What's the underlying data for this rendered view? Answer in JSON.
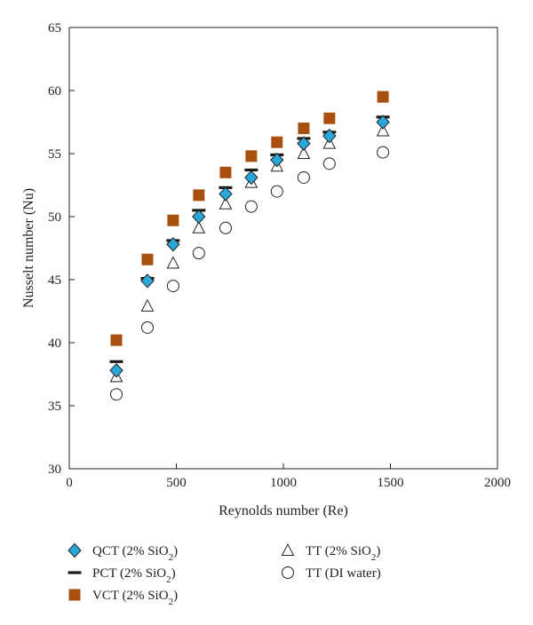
{
  "chart_data": {
    "type": "scatter",
    "xlabel": "Reynolds number (Re)",
    "ylabel": "Nusselt number (Nu)",
    "xlim": [
      0,
      2000
    ],
    "ylim": [
      30,
      65
    ],
    "x_ticks": [
      0,
      500,
      1000,
      1500,
      2000
    ],
    "y_ticks": [
      30,
      35,
      40,
      45,
      50,
      55,
      60,
      65
    ],
    "grid": false,
    "legend_position": "bottom",
    "x": [
      220,
      365,
      485,
      605,
      730,
      850,
      970,
      1095,
      1215,
      1465
    ],
    "series": [
      {
        "name": "QCT (2% SiO2)",
        "legend": {
          "prefix": "QCT (2% SiO",
          "sub": "2",
          "suffix": ")"
        },
        "marker": "diamond",
        "color": "#2aa7d9",
        "values": [
          37.8,
          44.9,
          47.8,
          50.0,
          51.8,
          53.1,
          54.5,
          55.8,
          56.4,
          57.5
        ]
      },
      {
        "name": "PCT (2% SiO2)",
        "legend": {
          "prefix": "PCT (2% SiO",
          "sub": "2",
          "suffix": ")"
        },
        "marker": "dash",
        "color": "#1a1a1a",
        "values": [
          38.5,
          45.1,
          48.1,
          50.5,
          52.3,
          53.7,
          54.9,
          56.2,
          56.7,
          57.9
        ]
      },
      {
        "name": "VCT (2% SiO2)",
        "legend": {
          "prefix": "VCT (2% SiO",
          "sub": "2",
          "suffix": ")"
        },
        "marker": "square",
        "color": "#a8500f",
        "values": [
          40.2,
          46.6,
          49.7,
          51.7,
          53.5,
          54.8,
          55.9,
          57.0,
          57.8,
          59.5
        ]
      },
      {
        "name": "TT (2% SiO2)",
        "legend": {
          "prefix": "TT (2% SiO",
          "sub": "2",
          "suffix": ")"
        },
        "marker": "triangle",
        "color": "#ffffff",
        "values": [
          37.3,
          42.9,
          46.3,
          49.1,
          51.0,
          52.7,
          54.0,
          55.0,
          55.8,
          56.8
        ]
      },
      {
        "name": "TT (DI water)",
        "legend": {
          "prefix": "TT (DI water)",
          "sub": "",
          "suffix": ""
        },
        "marker": "circle",
        "color": "#ffffff",
        "values": [
          35.9,
          41.2,
          44.5,
          47.1,
          49.1,
          50.8,
          52.0,
          53.1,
          54.2,
          55.1
        ]
      }
    ]
  }
}
